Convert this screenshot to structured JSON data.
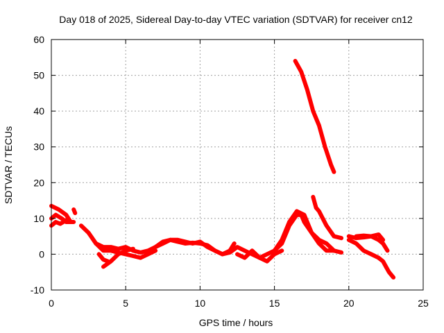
{
  "chart_data": {
    "type": "line",
    "title": "Day 018 of 2025, Sidereal Day-to-day VTEC variation (SDTVAR) for receiver cn12",
    "xlabel": "GPS time / hours",
    "ylabel": "SDTVAR / TECUs",
    "xlim": [
      0,
      25
    ],
    "ylim": [
      -10,
      60
    ],
    "xticks": [
      0,
      5,
      10,
      15,
      20,
      25
    ],
    "yticks": [
      -10,
      0,
      10,
      20,
      30,
      40,
      50,
      60
    ],
    "grid": true,
    "series_color": "#ff0000",
    "series": [
      {
        "name": "s1",
        "x": [
          0.0,
          0.5,
          1.0,
          1.3
        ],
        "y": [
          13.5,
          12.5,
          11,
          9
        ]
      },
      {
        "name": "s2",
        "x": [
          0.0,
          0.3,
          0.7,
          1.0,
          1.5
        ],
        "y": [
          10,
          11,
          10,
          9,
          9
        ]
      },
      {
        "name": "s3",
        "x": [
          0.0,
          0.3,
          0.6,
          1.0
        ],
        "y": [
          8,
          9,
          8.5,
          9.5
        ]
      },
      {
        "name": "s4",
        "x": [
          1.5,
          1.6
        ],
        "y": [
          12.5,
          11.5
        ]
      },
      {
        "name": "s5",
        "x": [
          2.0,
          2.5,
          3.0,
          3.5,
          4.0,
          4.5,
          5.0,
          5.5,
          6.0,
          6.5,
          7.0
        ],
        "y": [
          8,
          6,
          3,
          1,
          1,
          0.5,
          0,
          -0.5,
          -1,
          0,
          1
        ]
      },
      {
        "name": "s6",
        "x": [
          3.0,
          3.5,
          4.0,
          4.5,
          5.0,
          5.5,
          6.0,
          6.5,
          7.0,
          7.5,
          8.0,
          8.5,
          9.0,
          9.5,
          10.0,
          10.5,
          11.0,
          11.5,
          12.0,
          12.5,
          13.0,
          13.5,
          14.0,
          14.5,
          15.0,
          15.5,
          16.0,
          16.5,
          16.8,
          17.0,
          17.5,
          18.0,
          18.5,
          19.0
        ],
        "y": [
          3,
          2,
          2,
          1.5,
          2,
          1,
          0.5,
          1,
          2,
          3,
          4,
          4,
          3.5,
          3,
          3.5,
          2,
          1,
          0,
          0.5,
          2,
          1,
          0,
          -1,
          0,
          1,
          3,
          8,
          11,
          11,
          9,
          6,
          3,
          1,
          1
        ]
      },
      {
        "name": "s7",
        "x": [
          3.2,
          3.5,
          3.8
        ],
        "y": [
          0,
          -1.5,
          -2
        ]
      },
      {
        "name": "s8",
        "x": [
          3.5,
          4.0,
          4.5,
          5.0,
          5.5
        ],
        "y": [
          -3.5,
          -2,
          0,
          1,
          1.5
        ]
      },
      {
        "name": "s9",
        "x": [
          7.0,
          7.5,
          8.0,
          8.5,
          9.0,
          9.5,
          10.0,
          10.5,
          11.0,
          11.5,
          12.0,
          12.3
        ],
        "y": [
          2,
          3.5,
          4,
          3.5,
          3,
          3.2,
          3,
          2.5,
          1,
          0,
          1,
          3
        ]
      },
      {
        "name": "s10",
        "x": [
          12.5,
          13.0,
          13.5,
          14.0,
          14.5,
          15.0,
          15.5
        ],
        "y": [
          0,
          -1,
          1,
          -1,
          -2,
          0,
          1
        ]
      },
      {
        "name": "s11",
        "x": [
          15.0,
          15.5,
          16.0,
          16.5,
          17.0,
          17.5,
          18.0,
          18.5,
          19.0,
          19.5
        ],
        "y": [
          1,
          4,
          9,
          12,
          11,
          6,
          4,
          3,
          1,
          0.5
        ]
      },
      {
        "name": "s12",
        "x": [
          16.4,
          16.8,
          17.2,
          17.6,
          18.0,
          18.4,
          18.8,
          19.0
        ],
        "y": [
          54,
          51,
          46,
          40,
          36,
          30,
          25,
          23
        ]
      },
      {
        "name": "s13",
        "x": [
          17.6,
          17.8,
          18.0,
          18.5,
          19.0,
          19.5
        ],
        "y": [
          16,
          13,
          12,
          8,
          5,
          4.5
        ]
      },
      {
        "name": "s14",
        "x": [
          20.0,
          20.5,
          21.0,
          21.5,
          22.0,
          22.3,
          22.5,
          22.7,
          23.0
        ],
        "y": [
          4,
          3,
          1,
          0,
          -1,
          -2,
          -3.5,
          -5,
          -6.5
        ]
      },
      {
        "name": "s15",
        "x": [
          20.5,
          21.0,
          21.5,
          22.0,
          22.3,
          22.6
        ],
        "y": [
          5,
          5.2,
          5,
          4,
          3,
          1
        ]
      },
      {
        "name": "s16",
        "x": [
          20.0,
          20.5,
          21.0,
          21.5,
          22.0,
          22.3
        ],
        "y": [
          5,
          4.5,
          4.7,
          5,
          5.5,
          4
        ]
      }
    ]
  }
}
